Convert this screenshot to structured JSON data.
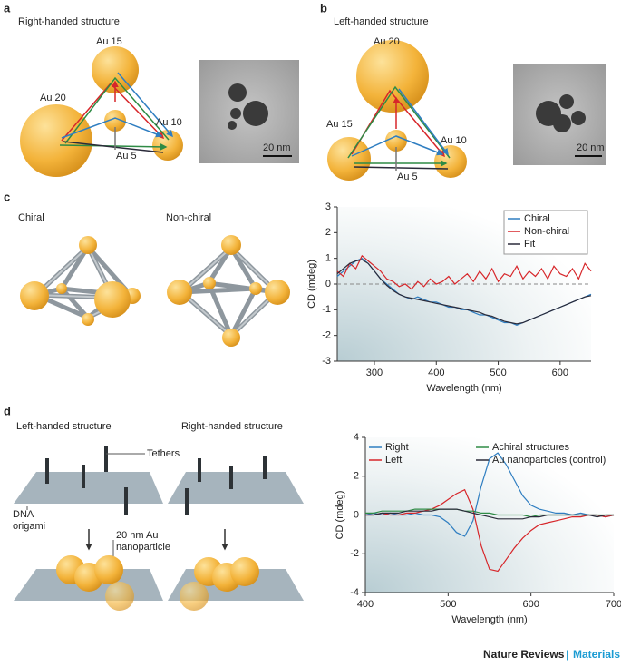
{
  "panels": {
    "a": {
      "label": "a",
      "title": "Right-handed structure",
      "labels": [
        "Au 15",
        "Au 20",
        "Au 10",
        "Au 5"
      ],
      "scale": "20 nm"
    },
    "b": {
      "label": "b",
      "title": "Left-handed structure",
      "labels": [
        "Au 20",
        "Au 15",
        "Au 10",
        "Au 5"
      ],
      "scale": "20 nm"
    },
    "c": {
      "label": "c",
      "captions": [
        "Chiral",
        "Non-chiral"
      ]
    },
    "d": {
      "label": "d",
      "captions": [
        "Left-handed structure",
        "Right-handed structure"
      ],
      "annotations": [
        "Tethers",
        "DNA",
        "origami",
        "20 nm Au",
        "nanoparticle"
      ]
    }
  },
  "footer": {
    "journal": "Nature Reviews",
    "separator": "|",
    "section": "Materials"
  },
  "chart_data": [
    {
      "type": "line",
      "xlabel": "Wavelength (nm)",
      "ylabel": "CD (mdeg)",
      "xlim": [
        240,
        650
      ],
      "ylim": [
        -3,
        3
      ],
      "xticks": [
        300,
        400,
        500,
        600
      ],
      "yticks": [
        -3,
        -2,
        -1,
        0,
        1,
        2,
        3
      ],
      "zero_line": true,
      "legend": "upper right",
      "legend_columns": 1,
      "x": [
        240,
        250,
        260,
        270,
        280,
        290,
        300,
        310,
        320,
        330,
        340,
        350,
        360,
        370,
        380,
        390,
        400,
        410,
        420,
        430,
        440,
        450,
        460,
        470,
        480,
        490,
        500,
        510,
        520,
        530,
        540,
        550,
        560,
        570,
        580,
        590,
        600,
        610,
        620,
        630,
        640,
        650
      ],
      "series": [
        {
          "name": "Chiral",
          "color": "#2f7ec1",
          "values": [
            0.3,
            0.5,
            0.7,
            0.9,
            1.0,
            0.8,
            0.5,
            0.2,
            0.0,
            -0.2,
            -0.4,
            -0.5,
            -0.6,
            -0.5,
            -0.6,
            -0.7,
            -0.7,
            -0.8,
            -0.9,
            -0.9,
            -1.0,
            -1.0,
            -1.1,
            -1.2,
            -1.2,
            -1.3,
            -1.4,
            -1.5,
            -1.5,
            -1.6,
            -1.5,
            -1.4,
            -1.3,
            -1.2,
            -1.1,
            -1.0,
            -0.9,
            -0.8,
            -0.7,
            -0.6,
            -0.5,
            -0.4
          ]
        },
        {
          "name": "Non-chiral",
          "color": "#d7262a",
          "values": [
            0.5,
            0.3,
            0.8,
            0.6,
            1.1,
            0.9,
            0.7,
            0.5,
            0.2,
            0.1,
            -0.1,
            0.0,
            -0.2,
            0.1,
            -0.1,
            0.2,
            0.0,
            0.1,
            0.3,
            0.0,
            0.2,
            0.4,
            0.1,
            0.5,
            0.2,
            0.6,
            0.1,
            0.4,
            0.3,
            0.7,
            0.2,
            0.5,
            0.3,
            0.6,
            0.2,
            0.7,
            0.4,
            0.3,
            0.6,
            0.2,
            0.8,
            0.5
          ]
        },
        {
          "name": "Fit",
          "color": "#2b2b3a",
          "values": [
            0.4,
            0.6,
            0.8,
            0.9,
            0.95,
            0.8,
            0.5,
            0.2,
            -0.05,
            -0.25,
            -0.4,
            -0.5,
            -0.55,
            -0.6,
            -0.65,
            -0.7,
            -0.75,
            -0.8,
            -0.85,
            -0.9,
            -0.95,
            -1.0,
            -1.05,
            -1.1,
            -1.2,
            -1.25,
            -1.35,
            -1.45,
            -1.5,
            -1.55,
            -1.5,
            -1.4,
            -1.3,
            -1.2,
            -1.1,
            -1.0,
            -0.9,
            -0.8,
            -0.7,
            -0.6,
            -0.5,
            -0.45
          ]
        }
      ]
    },
    {
      "type": "line",
      "xlabel": "Wavelength (nm)",
      "ylabel": "CD (mdeg)",
      "xlim": [
        400,
        700
      ],
      "ylim": [
        -4,
        4
      ],
      "xticks": [
        400,
        500,
        600,
        700
      ],
      "yticks": [
        -4,
        -2,
        0,
        2,
        4
      ],
      "zero_line": false,
      "legend": "top",
      "legend_columns": 2,
      "x": [
        400,
        410,
        420,
        430,
        440,
        450,
        460,
        470,
        480,
        490,
        500,
        510,
        520,
        530,
        540,
        550,
        560,
        570,
        580,
        590,
        600,
        610,
        620,
        630,
        640,
        650,
        660,
        670,
        680,
        690,
        700
      ],
      "series": [
        {
          "name": "Right",
          "color": "#2f7ec1",
          "values": [
            0,
            0.1,
            0,
            0.1,
            0,
            0,
            0.1,
            0,
            0,
            -0.1,
            -0.4,
            -0.9,
            -1.1,
            -0.3,
            1.5,
            2.9,
            3.2,
            2.6,
            1.8,
            1.0,
            0.5,
            0.3,
            0.2,
            0.1,
            0.1,
            0,
            0.1,
            0,
            0,
            -0.1,
            0
          ]
        },
        {
          "name": "Left",
          "color": "#d7262a",
          "values": [
            0,
            0,
            0.1,
            0,
            0,
            0.1,
            0.1,
            0.2,
            0.3,
            0.5,
            0.8,
            1.1,
            1.3,
            0.3,
            -1.6,
            -2.8,
            -2.9,
            -2.3,
            -1.7,
            -1.2,
            -0.8,
            -0.5,
            -0.4,
            -0.3,
            -0.2,
            -0.1,
            -0.1,
            0,
            0,
            -0.1,
            0
          ]
        },
        {
          "name": "Achiral structures",
          "color": "#2e8b45",
          "values": [
            0.1,
            0.1,
            0.2,
            0.2,
            0.2,
            0.2,
            0.3,
            0.3,
            0.3,
            0.3,
            0.3,
            0.3,
            0.2,
            0.2,
            0.1,
            0.1,
            0,
            0,
            0,
            0,
            -0.1,
            0,
            0,
            0,
            0,
            0,
            0,
            0,
            0,
            0,
            0
          ]
        },
        {
          "name": "Au nanoparticles (control)",
          "color": "#2b2b3a",
          "values": [
            0,
            0,
            0.1,
            0.1,
            0.1,
            0.2,
            0.2,
            0.2,
            0.2,
            0.3,
            0.3,
            0.3,
            0.2,
            0.1,
            0,
            -0.1,
            -0.2,
            -0.2,
            -0.2,
            -0.2,
            -0.1,
            -0.1,
            0,
            0,
            0,
            0,
            0,
            0,
            -0.1,
            0,
            0
          ]
        }
      ]
    }
  ]
}
